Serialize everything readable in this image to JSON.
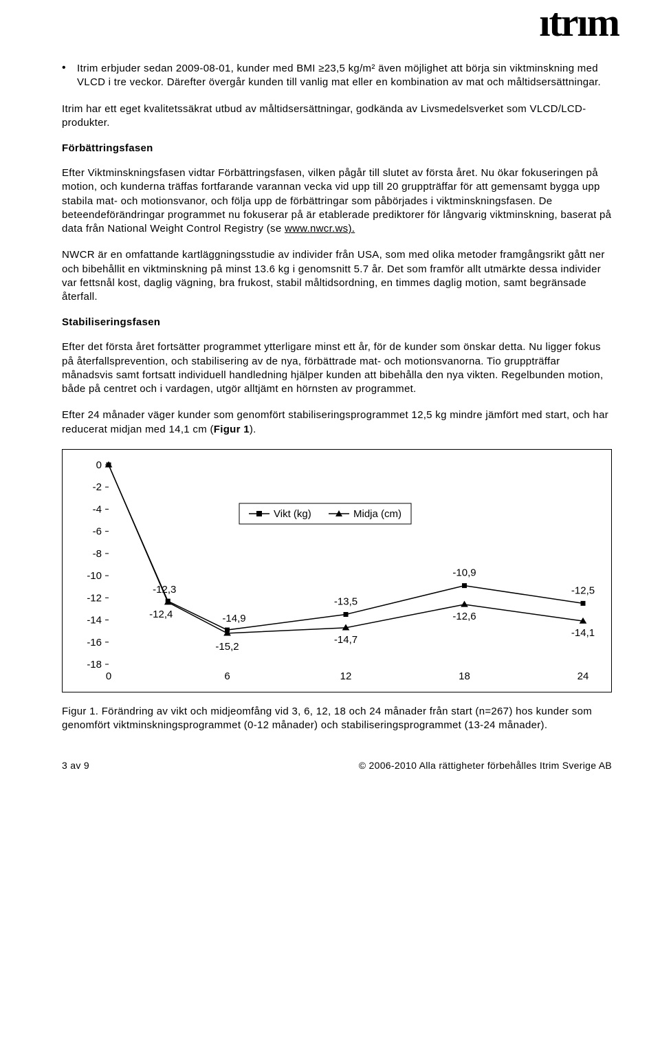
{
  "logo_text": "itrim",
  "bullet": "Itrim erbjuder sedan 2009-08-01, kunder med BMI ≥23,5 kg/m² även möjlighet att börja sin viktminskning med VLCD i tre veckor. Därefter övergår kunden till vanlig mat eller en kombination av mat och måltidsersättningar.",
  "para_itrim": "Itrim har ett eget kvalitetssäkrat utbud av måltidsersättningar, godkända av Livsmedelsverket som VLCD/LCD-produkter.",
  "heading_forbattring": "Förbättringsfasen",
  "para_forbattring_1": "Efter Viktminskningsfasen vidtar Förbättringsfasen, vilken pågår till slutet av första året. Nu ökar fokuseringen på motion, och kunderna träffas fortfarande varannan vecka vid upp till 20 gruppträffar för att gemensamt bygga upp stabila mat- och motionsvanor, och följa upp de förbättringar som påbörjades i viktminskningsfasen. De beteendeförändringar programmet nu fokuserar på är etablerade prediktorer för långvarig viktminskning, baserat på data från National Weight Control Registry (se ",
  "link_nwcr": "www.nwcr.ws).",
  "para_nwcr": "NWCR är en omfattande kartläggningsstudie av individer från USA, som med olika metoder framgångsrikt gått ner och bibehållit en viktminskning på minst 13.6 kg i genomsnitt 5.7 år. Det som framför allt utmärkte dessa individer var fettsnål kost, daglig vägning, bra frukost, stabil måltidsordning, en timmes daglig motion, samt begränsade återfall.",
  "heading_stabil": "Stabiliseringsfasen",
  "para_stabil_1": "Efter det första året fortsätter programmet ytterligare minst ett år, för de kunder som önskar detta. Nu ligger fokus på återfallsprevention, och stabilisering av de nya, förbättrade mat- och motionsvanorna. Tio gruppträffar månadsvis samt fortsatt individuell handledning hjälper kunden att bibehålla den nya vikten. Regelbunden motion, både på centret och i vardagen, utgör alltjämt en hörnsten av programmet.",
  "para_stabil_2_pre": "Efter 24 månader väger kunder som genomfört stabiliseringsprogrammet 12,5 kg mindre jämfört med start, och har reducerat midjan med 14,1 cm (",
  "para_stabil_2_bold": "Figur 1",
  "para_stabil_2_post": ").",
  "chart": {
    "type": "line",
    "background_color": "#ffffff",
    "grid_color": "#000000",
    "axis_color": "#000000",
    "line_color": "#000000",
    "marker_size_vikt": 7,
    "marker_size_midja": 8,
    "line_width": 1.5,
    "xlim": [
      0,
      24
    ],
    "ylim": [
      -18,
      0
    ],
    "xticks": [
      0,
      6,
      12,
      18,
      24
    ],
    "yticks": [
      0,
      -2,
      -4,
      -6,
      -8,
      -10,
      -12,
      -14,
      -16,
      -18
    ],
    "legend": {
      "items": [
        {
          "marker": "square",
          "label": "Vikt (kg)"
        },
        {
          "marker": "triangle",
          "label": "Midja (cm)"
        }
      ]
    },
    "series_vikt": {
      "x": [
        0,
        3,
        6,
        12,
        18,
        24
      ],
      "y": [
        0,
        -12.3,
        -14.9,
        -13.5,
        -10.9,
        -12.5
      ],
      "labels": [
        "",
        "-12,3",
        "-14,9",
        "-13,5",
        "-10,9",
        "-12,5"
      ]
    },
    "series_midja": {
      "x": [
        0,
        3,
        6,
        12,
        18,
        24
      ],
      "y": [
        0,
        -12.4,
        -15.2,
        -14.7,
        -12.6,
        -14.1
      ],
      "labels": [
        "",
        "-12,4",
        "-15,2",
        "-14,7",
        "-12,6",
        "-14,1"
      ]
    },
    "label_fontsize": 15
  },
  "caption": "Figur 1. Förändring av vikt och midjeomfång vid 3, 6, 12, 18 och 24 månader från start (n=267) hos kunder som genomfört viktminskningsprogrammet (0-12 månader) och stabiliseringsprogrammet (13-24 månader).",
  "footer_left": "3 av 9",
  "footer_right": "© 2006-2010 Alla rättigheter förbehålles Itrim Sverige AB"
}
